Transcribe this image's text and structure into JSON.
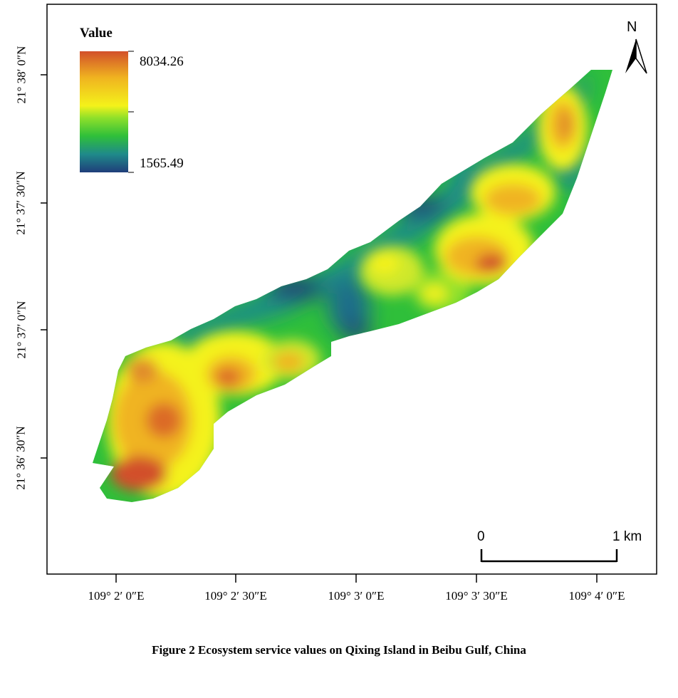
{
  "legend": {
    "title": "Value",
    "max_label": "8034.26",
    "min_label": "1565.49",
    "ramp_colors": [
      "#1f3d7a",
      "#1f8a8a",
      "#2fbf3a",
      "#8fe02a",
      "#f4f21a",
      "#f0b420",
      "#d2502a"
    ]
  },
  "north_arrow": {
    "label": "N"
  },
  "scale_bar": {
    "start_label": "0",
    "end_label": "1 km"
  },
  "latitude_labels": [
    "21° 38′ 0″N",
    "21° 37′ 30″N",
    "21° 37′ 0″N",
    "21° 36′ 30″N"
  ],
  "longitude_labels": [
    "109° 2′ 0″E",
    "109° 2′ 30″E",
    "109° 3′ 0″E",
    "109° 3′ 30″E",
    "109° 4′ 0″E"
  ],
  "caption": "Figure 2  Ecosystem service values on Qixing Island in Beibu Gulf, China",
  "hotspots": [
    {
      "level": 1.0
    },
    {
      "level": 0.9
    },
    {
      "level": 0.85
    },
    {
      "level": 0.9
    },
    {
      "level": 0.85
    }
  ]
}
